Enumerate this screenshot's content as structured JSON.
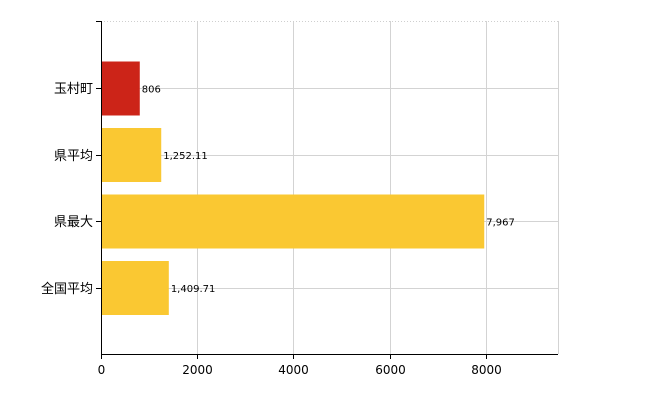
{
  "chart_data": {
    "type": "bar",
    "orientation": "horizontal",
    "categories": [
      "玉村町",
      "県平均",
      "県最大",
      "全国平均"
    ],
    "values": [
      806,
      1252.11,
      7967,
      1409.71
    ],
    "value_labels": [
      "806",
      "1,252.11",
      "7,967",
      "1,409.71"
    ],
    "xlim": [
      0,
      9500
    ],
    "x_ticks": [
      0,
      2000,
      4000,
      6000,
      8000
    ],
    "x_tick_labels": [
      "0",
      "2000",
      "4000",
      "6000",
      "8000"
    ],
    "grid": true,
    "colors": {
      "highlight": "#cc2418",
      "default": "#fac832",
      "grid": "#d3d3d3",
      "axis": "#000000"
    },
    "highlight_index": 0
  }
}
